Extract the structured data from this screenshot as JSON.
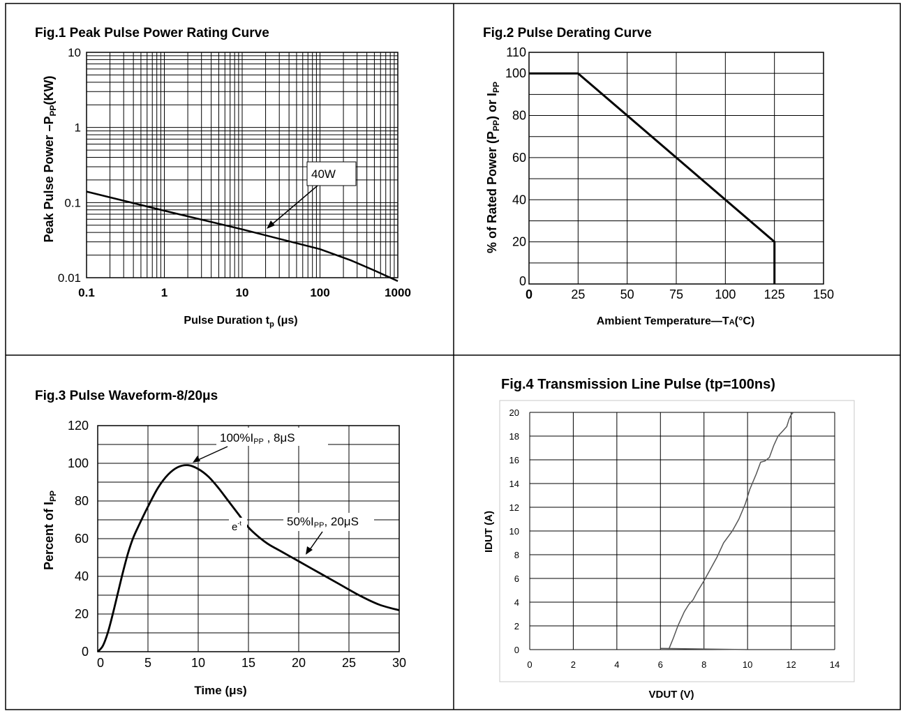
{
  "chart_data": [
    {
      "id": "fig1",
      "type": "line",
      "title": "Fig.1 Peak Pulse Power Rating Curve",
      "xlabel_main": "Pulse Duration t",
      "xlabel_sub": "p",
      "xlabel_tail": " (μs)",
      "ylabel_main": "Peak Pulse Power –P",
      "ylabel_sub": "PP",
      "ylabel_tail": "(KW)",
      "x_scale": "log",
      "y_scale": "log",
      "xlim": [
        0.1,
        1000
      ],
      "ylim": [
        0.01,
        10
      ],
      "x_ticks": [
        0.1,
        1,
        10,
        100,
        1000
      ],
      "x_tick_labels": [
        "0.1",
        "1",
        "10",
        "100",
        "1000"
      ],
      "y_ticks": [
        0.01,
        0.1,
        1,
        10
      ],
      "y_tick_labels": [
        "0.01",
        "0.1",
        "1",
        "10"
      ],
      "grid": true,
      "series": [
        {
          "x": [
            0.1,
            1,
            10,
            100,
            250,
            500,
            1000
          ],
          "y": [
            0.14,
            0.078,
            0.044,
            0.024,
            0.017,
            0.0125,
            0.009
          ]
        }
      ],
      "annotation": {
        "text": "40W",
        "x": 30,
        "y": 0.038
      }
    },
    {
      "id": "fig2",
      "type": "line",
      "title": "Fig.2 Pulse Derating Curve",
      "xlabel": "Ambient Temperature—T",
      "xlabel_sub": "A",
      "xlabel_tail": "(°C)",
      "ylabel_a": "% of Rated Power (P",
      "ylabel_sub1": "PP",
      "ylabel_b": ") or I",
      "ylabel_sub2": "PP",
      "xlim": [
        0,
        150
      ],
      "ylim": [
        0,
        110
      ],
      "x_ticks": [
        0,
        25,
        50,
        75,
        100,
        125,
        150
      ],
      "x_tick_labels": [
        "0",
        "25",
        "50",
        "75",
        "100",
        "125",
        "150"
      ],
      "y_ticks": [
        0,
        20,
        40,
        60,
        80,
        100,
        110
      ],
      "y_tick_labels": [
        "0",
        "20",
        "40",
        "60",
        "80",
        "100",
        "110"
      ],
      "grid": true,
      "series": [
        {
          "x": [
            0,
            25,
            125,
            125
          ],
          "y": [
            100,
            100,
            20,
            0
          ]
        }
      ]
    },
    {
      "id": "fig3",
      "type": "line",
      "title": "Fig.3 Pulse Waveform-8/20μs",
      "xlabel": "Time (μs)",
      "ylabel_main": "Percent of I",
      "ylabel_sub": "PP",
      "xlim": [
        0,
        30
      ],
      "ylim": [
        0,
        120
      ],
      "x_ticks": [
        0,
        5,
        10,
        15,
        20,
        25,
        30
      ],
      "x_tick_labels": [
        "0",
        "5",
        "10",
        "15",
        "20",
        "25",
        "30"
      ],
      "y_ticks": [
        0,
        20,
        40,
        60,
        80,
        100,
        120
      ],
      "y_tick_labels": [
        "0",
        "20",
        "40",
        "60",
        "80",
        "100",
        "120"
      ],
      "grid": true,
      "series": [
        {
          "x": [
            0,
            0.5,
            1,
            1.5,
            2,
            2.5,
            3,
            3.5,
            4,
            5,
            6,
            7,
            8,
            9,
            10,
            11,
            12,
            13,
            14,
            15,
            16,
            17,
            18,
            19,
            20,
            22,
            24,
            26,
            28,
            30
          ],
          "y": [
            0,
            3,
            10,
            20,
            31,
            42,
            52,
            60,
            66,
            77,
            87,
            94,
            98,
            99,
            97,
            93,
            87,
            80,
            73,
            66,
            61,
            57,
            54,
            51,
            48,
            42,
            36,
            30,
            25,
            22
          ]
        }
      ],
      "annotations": [
        {
          "text": "100%I",
          "sub": "PP",
          "tail": " , 8μS"
        },
        {
          "text": "50%I",
          "sub": "PP",
          "tail": ", 20μS"
        },
        {
          "text": "e",
          "sup": "-t"
        }
      ]
    },
    {
      "id": "fig4",
      "type": "line",
      "title": "Fig.4 Transmission Line Pulse (tp=100ns)",
      "xlabel": "VDUT (V)",
      "ylabel": "IDUT (A)",
      "xlim": [
        0,
        14
      ],
      "ylim": [
        0,
        20
      ],
      "x_ticks": [
        0,
        2,
        4,
        6,
        8,
        10,
        12,
        14
      ],
      "x_tick_labels": [
        "0",
        "2",
        "4",
        "6",
        "8",
        "10",
        "12",
        "14"
      ],
      "y_ticks": [
        0,
        2,
        4,
        6,
        8,
        10,
        12,
        14,
        16,
        18,
        20
      ],
      "y_tick_labels": [
        "0",
        "2",
        "4",
        "6",
        "8",
        "10",
        "12",
        "14",
        "16",
        "18",
        "20"
      ],
      "grid": true,
      "series": [
        {
          "x": [
            6,
            10
          ],
          "y": [
            0.1,
            0
          ]
        },
        {
          "x": [
            6.4,
            6.6,
            6.8,
            7.1,
            7.3,
            7.5,
            7.7,
            8.0,
            8.3,
            8.6,
            8.9,
            9.3,
            9.6,
            9.9,
            10.1,
            10.4,
            10.6,
            10.8,
            11.0,
            11.2,
            11.4,
            11.6,
            11.8,
            11.9,
            12.0,
            12.1
          ],
          "y": [
            0.1,
            1.0,
            2.0,
            3.2,
            3.8,
            4.2,
            4.9,
            5.8,
            6.8,
            7.8,
            9.0,
            10.0,
            11.0,
            12.3,
            13.5,
            14.8,
            15.8,
            15.9,
            16.2,
            17.2,
            18.0,
            18.4,
            18.8,
            19.4,
            19.8,
            20
          ]
        }
      ]
    }
  ]
}
